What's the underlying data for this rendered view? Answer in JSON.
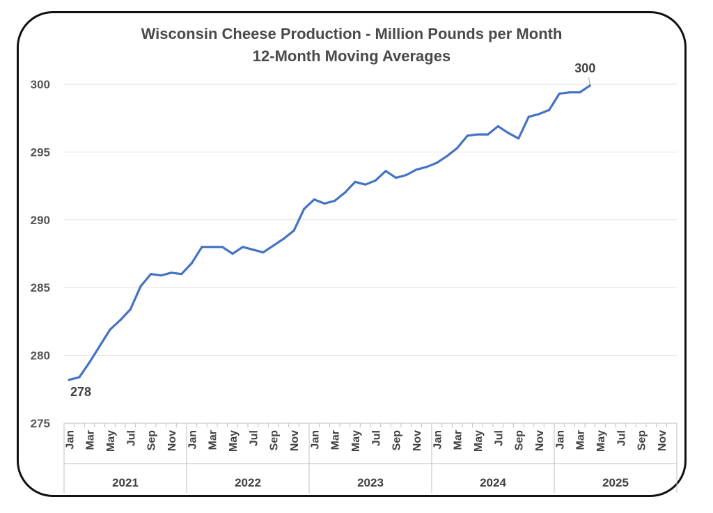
{
  "chart_data": {
    "type": "line",
    "title": "Wisconsin Cheese Production - Million Pounds per Month",
    "subtitle": "12-Month Moving Averages",
    "xlabel": "",
    "ylabel": "",
    "ylim": [
      275,
      300
    ],
    "yticks": [
      "275",
      "280",
      "285",
      "290",
      "295",
      "300"
    ],
    "grid": true,
    "legend": "none",
    "years": [
      "2021",
      "2022",
      "2023",
      "2024",
      "2025"
    ],
    "month_tick_labels": [
      "Jan",
      "Mar",
      "May",
      "Jul",
      "Sep",
      "Nov"
    ],
    "x": [
      "2021-01",
      "2021-02",
      "2021-03",
      "2021-04",
      "2021-05",
      "2021-06",
      "2021-07",
      "2021-08",
      "2021-09",
      "2021-10",
      "2021-11",
      "2021-12",
      "2022-01",
      "2022-02",
      "2022-03",
      "2022-04",
      "2022-05",
      "2022-06",
      "2022-07",
      "2022-08",
      "2022-09",
      "2022-10",
      "2022-11",
      "2022-12",
      "2023-01",
      "2023-02",
      "2023-03",
      "2023-04",
      "2023-05",
      "2023-06",
      "2023-07",
      "2023-08",
      "2023-09",
      "2023-10",
      "2023-11",
      "2023-12",
      "2024-01",
      "2024-02",
      "2024-03",
      "2024-04",
      "2024-05",
      "2024-06",
      "2024-07",
      "2024-08",
      "2024-09",
      "2024-10",
      "2024-11",
      "2024-12",
      "2025-01",
      "2025-02",
      "2025-03",
      "2025-04"
    ],
    "series": [
      {
        "color": "#4472c4",
        "values": [
          278.2,
          278.4,
          279.5,
          280.7,
          281.9,
          282.6,
          283.4,
          285.1,
          286.0,
          285.9,
          286.1,
          286.0,
          286.8,
          288.0,
          288.0,
          288.0,
          287.5,
          288.0,
          287.8,
          287.6,
          288.1,
          288.6,
          289.2,
          290.8,
          291.5,
          291.2,
          291.4,
          292.0,
          292.8,
          292.6,
          292.9,
          293.6,
          293.1,
          293.3,
          293.7,
          293.9,
          294.2,
          294.7,
          295.3,
          296.2,
          296.3,
          296.3,
          296.9,
          296.4,
          296.0,
          297.6,
          297.8,
          298.1,
          299.3,
          299.4,
          299.4,
          299.9
        ]
      }
    ],
    "annotations": [
      {
        "text": "278",
        "at": "2021-02"
      },
      {
        "text": "300",
        "at": "2025-04"
      }
    ]
  }
}
